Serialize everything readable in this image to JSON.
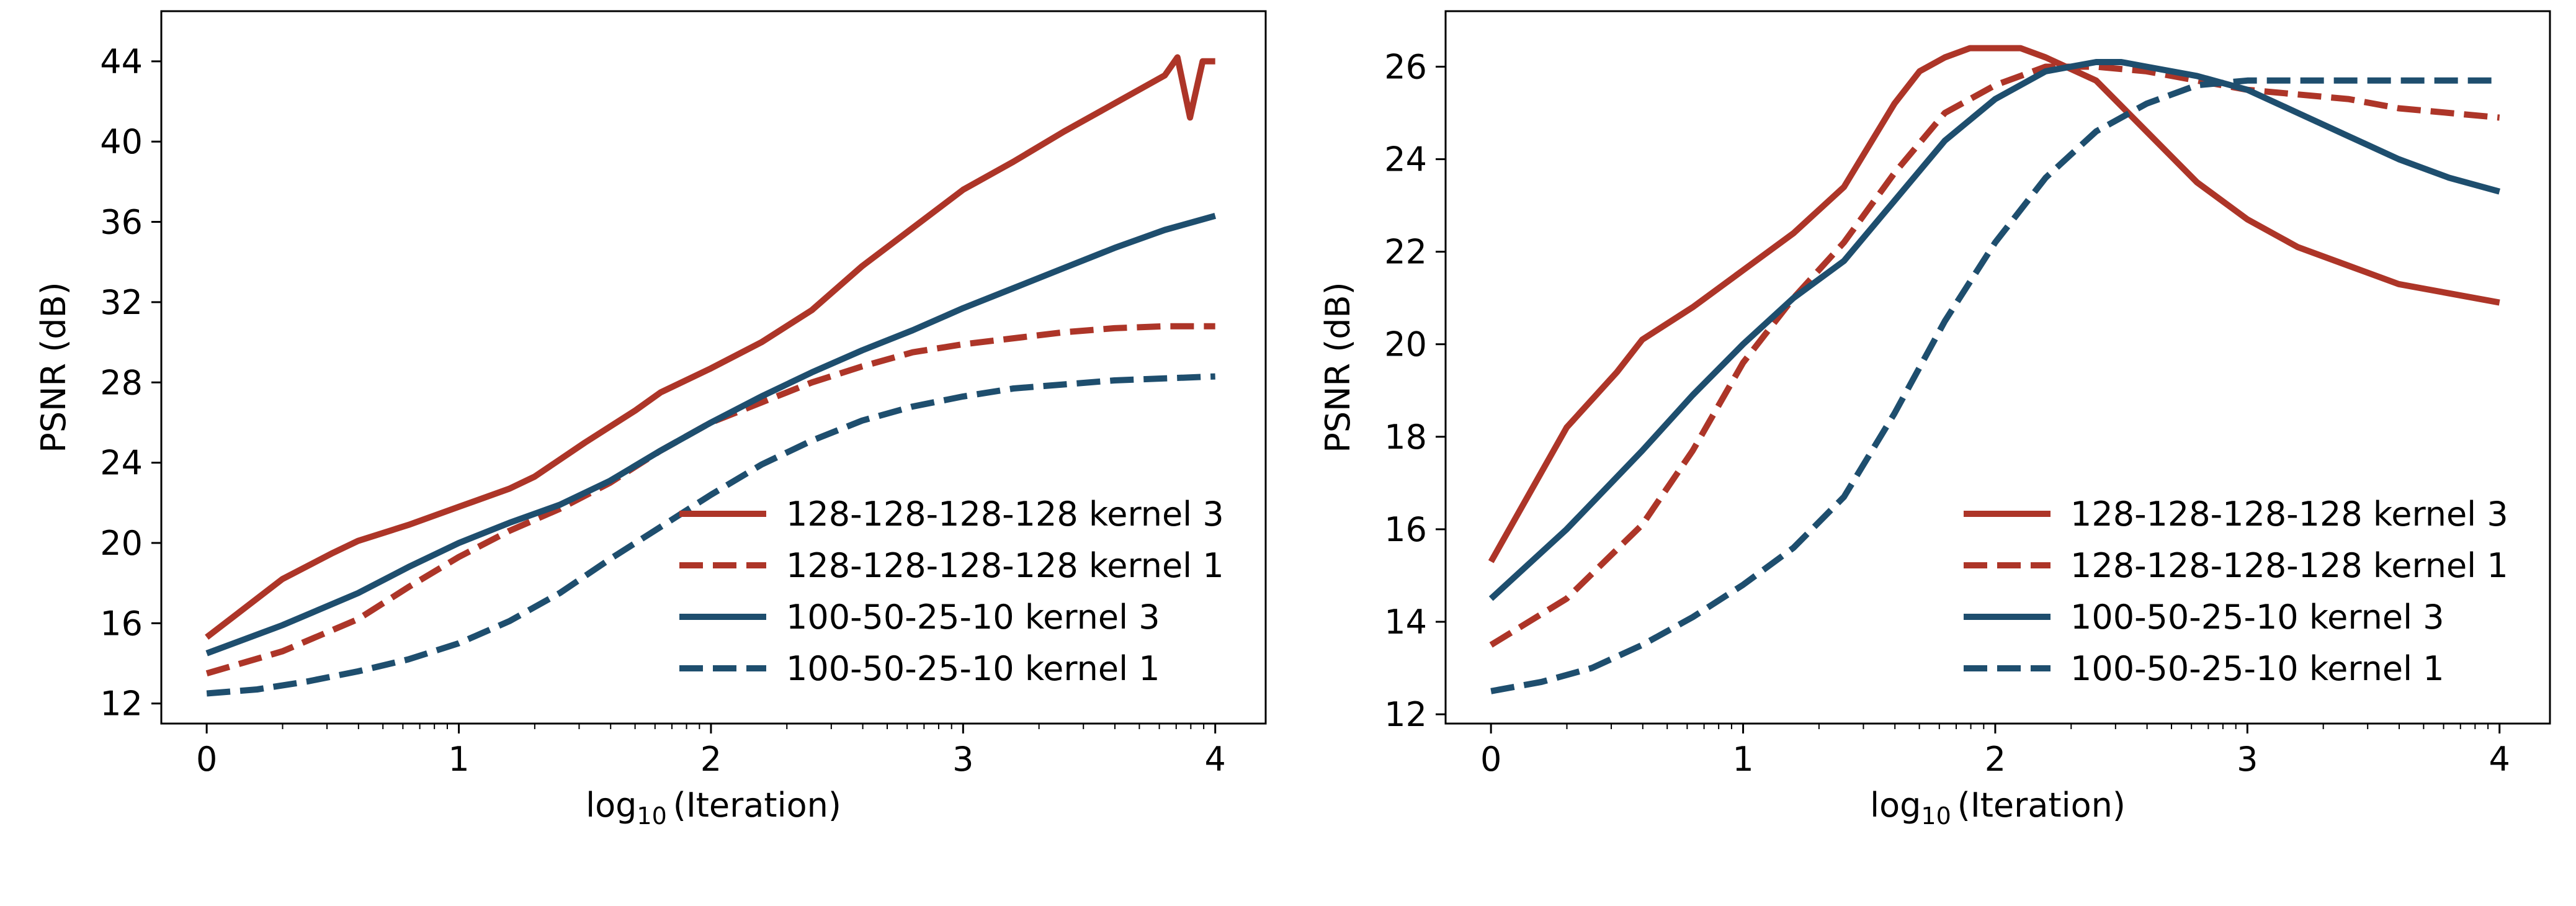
{
  "chart_data": [
    {
      "type": "line",
      "xlabel": {
        "prefix": "log",
        "sub": "10",
        "rest": "(Iteration)"
      },
      "ylabel": "PSNR (dB)",
      "xlim": [
        -0.18,
        4.2
      ],
      "ylim": [
        11.0,
        46.5
      ],
      "xticks": [
        0,
        1,
        2,
        3,
        4
      ],
      "yticks": [
        12,
        16,
        20,
        24,
        28,
        32,
        36,
        40,
        44
      ],
      "legend_position": "lower-right",
      "series": [
        {
          "name": "128-128-128-128 kernel 3",
          "color": "#ad3528",
          "dash": "solid",
          "x": [
            0,
            0.3,
            0.5,
            0.6,
            0.8,
            1.0,
            1.2,
            1.3,
            1.5,
            1.7,
            1.8,
            1.9,
            2.0,
            2.2,
            2.4,
            2.6,
            2.8,
            3.0,
            3.2,
            3.4,
            3.6,
            3.8,
            3.85,
            3.9,
            3.95,
            4.0
          ],
          "y": [
            15.3,
            18.2,
            19.5,
            20.1,
            20.9,
            21.8,
            22.7,
            23.3,
            25.0,
            26.6,
            27.5,
            28.1,
            28.7,
            30.0,
            31.6,
            33.8,
            35.7,
            37.6,
            39.0,
            40.5,
            41.9,
            43.3,
            44.2,
            41.2,
            44.0,
            44.0
          ]
        },
        {
          "name": "128-128-128-128 kernel 1",
          "color": "#ad3528",
          "dash": "dashed",
          "x": [
            0,
            0.3,
            0.6,
            0.8,
            1.0,
            1.2,
            1.4,
            1.6,
            1.8,
            2.0,
            2.2,
            2.4,
            2.6,
            2.8,
            3.0,
            3.2,
            3.4,
            3.6,
            3.8,
            4.0
          ],
          "y": [
            13.5,
            14.6,
            16.2,
            17.8,
            19.3,
            20.6,
            21.7,
            23.0,
            24.6,
            26.0,
            27.0,
            28.0,
            28.8,
            29.5,
            29.9,
            30.2,
            30.5,
            30.7,
            30.8,
            30.8
          ]
        },
        {
          "name": "100-50-25-10 kernel 3",
          "color": "#1e4e6e",
          "dash": "solid",
          "x": [
            0,
            0.3,
            0.6,
            0.8,
            1.0,
            1.2,
            1.4,
            1.6,
            1.8,
            2.0,
            2.2,
            2.4,
            2.6,
            2.8,
            3.0,
            3.2,
            3.4,
            3.6,
            3.8,
            4.0
          ],
          "y": [
            14.5,
            15.9,
            17.5,
            18.8,
            20.0,
            21.0,
            21.9,
            23.1,
            24.6,
            26.0,
            27.3,
            28.5,
            29.6,
            30.6,
            31.7,
            32.7,
            33.7,
            34.7,
            35.6,
            36.3
          ]
        },
        {
          "name": "100-50-25-10 kernel 1",
          "color": "#1e4e6e",
          "dash": "dashed",
          "x": [
            0,
            0.2,
            0.4,
            0.6,
            0.8,
            1.0,
            1.2,
            1.4,
            1.6,
            1.8,
            2.0,
            2.2,
            2.4,
            2.6,
            2.8,
            3.0,
            3.2,
            3.4,
            3.6,
            3.8,
            4.0
          ],
          "y": [
            12.5,
            12.7,
            13.1,
            13.6,
            14.2,
            15.0,
            16.1,
            17.5,
            19.2,
            20.8,
            22.4,
            23.9,
            25.1,
            26.1,
            26.8,
            27.3,
            27.7,
            27.9,
            28.1,
            28.2,
            28.3
          ]
        }
      ]
    },
    {
      "type": "line",
      "xlabel": {
        "prefix": "log",
        "sub": "10",
        "rest": "(Iteration)"
      },
      "ylabel": "PSNR (dB)",
      "xlim": [
        -0.18,
        4.2
      ],
      "ylim": [
        11.8,
        27.2
      ],
      "xticks": [
        0,
        1,
        2,
        3,
        4
      ],
      "yticks": [
        12,
        14,
        16,
        18,
        20,
        22,
        24,
        26
      ],
      "legend_position": "lower-right",
      "series": [
        {
          "name": "128-128-128-128 kernel 3",
          "color": "#ad3528",
          "dash": "solid",
          "x": [
            0,
            0.3,
            0.5,
            0.6,
            0.8,
            1.0,
            1.2,
            1.4,
            1.6,
            1.7,
            1.8,
            1.9,
            2.0,
            2.1,
            2.2,
            2.4,
            2.6,
            2.8,
            3.0,
            3.2,
            3.4,
            3.6,
            3.8,
            4.0
          ],
          "y": [
            15.3,
            18.2,
            19.4,
            20.1,
            20.8,
            21.6,
            22.4,
            23.4,
            25.2,
            25.9,
            26.2,
            26.4,
            26.4,
            26.4,
            26.2,
            25.7,
            24.6,
            23.5,
            22.7,
            22.1,
            21.7,
            21.3,
            21.1,
            20.9
          ]
        },
        {
          "name": "128-128-128-128 kernel 1",
          "color": "#ad3528",
          "dash": "dashed",
          "x": [
            0,
            0.3,
            0.6,
            0.8,
            1.0,
            1.2,
            1.4,
            1.6,
            1.8,
            2.0,
            2.2,
            2.4,
            2.6,
            2.8,
            3.0,
            3.2,
            3.4,
            3.6,
            3.8,
            4.0
          ],
          "y": [
            13.5,
            14.5,
            16.1,
            17.7,
            19.6,
            21.0,
            22.2,
            23.7,
            25.0,
            25.6,
            26.0,
            26.0,
            25.9,
            25.7,
            25.5,
            25.4,
            25.3,
            25.1,
            25.0,
            24.9
          ]
        },
        {
          "name": "100-50-25-10 kernel 3",
          "color": "#1e4e6e",
          "dash": "solid",
          "x": [
            0,
            0.3,
            0.6,
            0.8,
            1.0,
            1.2,
            1.4,
            1.6,
            1.8,
            2.0,
            2.2,
            2.4,
            2.5,
            2.6,
            2.8,
            3.0,
            3.2,
            3.4,
            3.6,
            3.8,
            4.0
          ],
          "y": [
            14.5,
            16.0,
            17.7,
            18.9,
            20.0,
            21.0,
            21.8,
            23.1,
            24.4,
            25.3,
            25.9,
            26.1,
            26.1,
            26.0,
            25.8,
            25.5,
            25.0,
            24.5,
            24.0,
            23.6,
            23.3
          ]
        },
        {
          "name": "100-50-25-10 kernel 1",
          "color": "#1e4e6e",
          "dash": "dashed",
          "x": [
            0,
            0.2,
            0.4,
            0.6,
            0.8,
            1.0,
            1.2,
            1.4,
            1.6,
            1.8,
            2.0,
            2.2,
            2.4,
            2.6,
            2.8,
            3.0,
            3.2,
            3.4,
            3.6,
            3.8,
            4.0
          ],
          "y": [
            12.5,
            12.7,
            13.0,
            13.5,
            14.1,
            14.8,
            15.6,
            16.7,
            18.5,
            20.5,
            22.2,
            23.6,
            24.6,
            25.2,
            25.6,
            25.7,
            25.7,
            25.7,
            25.7,
            25.7,
            25.7
          ]
        }
      ]
    }
  ]
}
